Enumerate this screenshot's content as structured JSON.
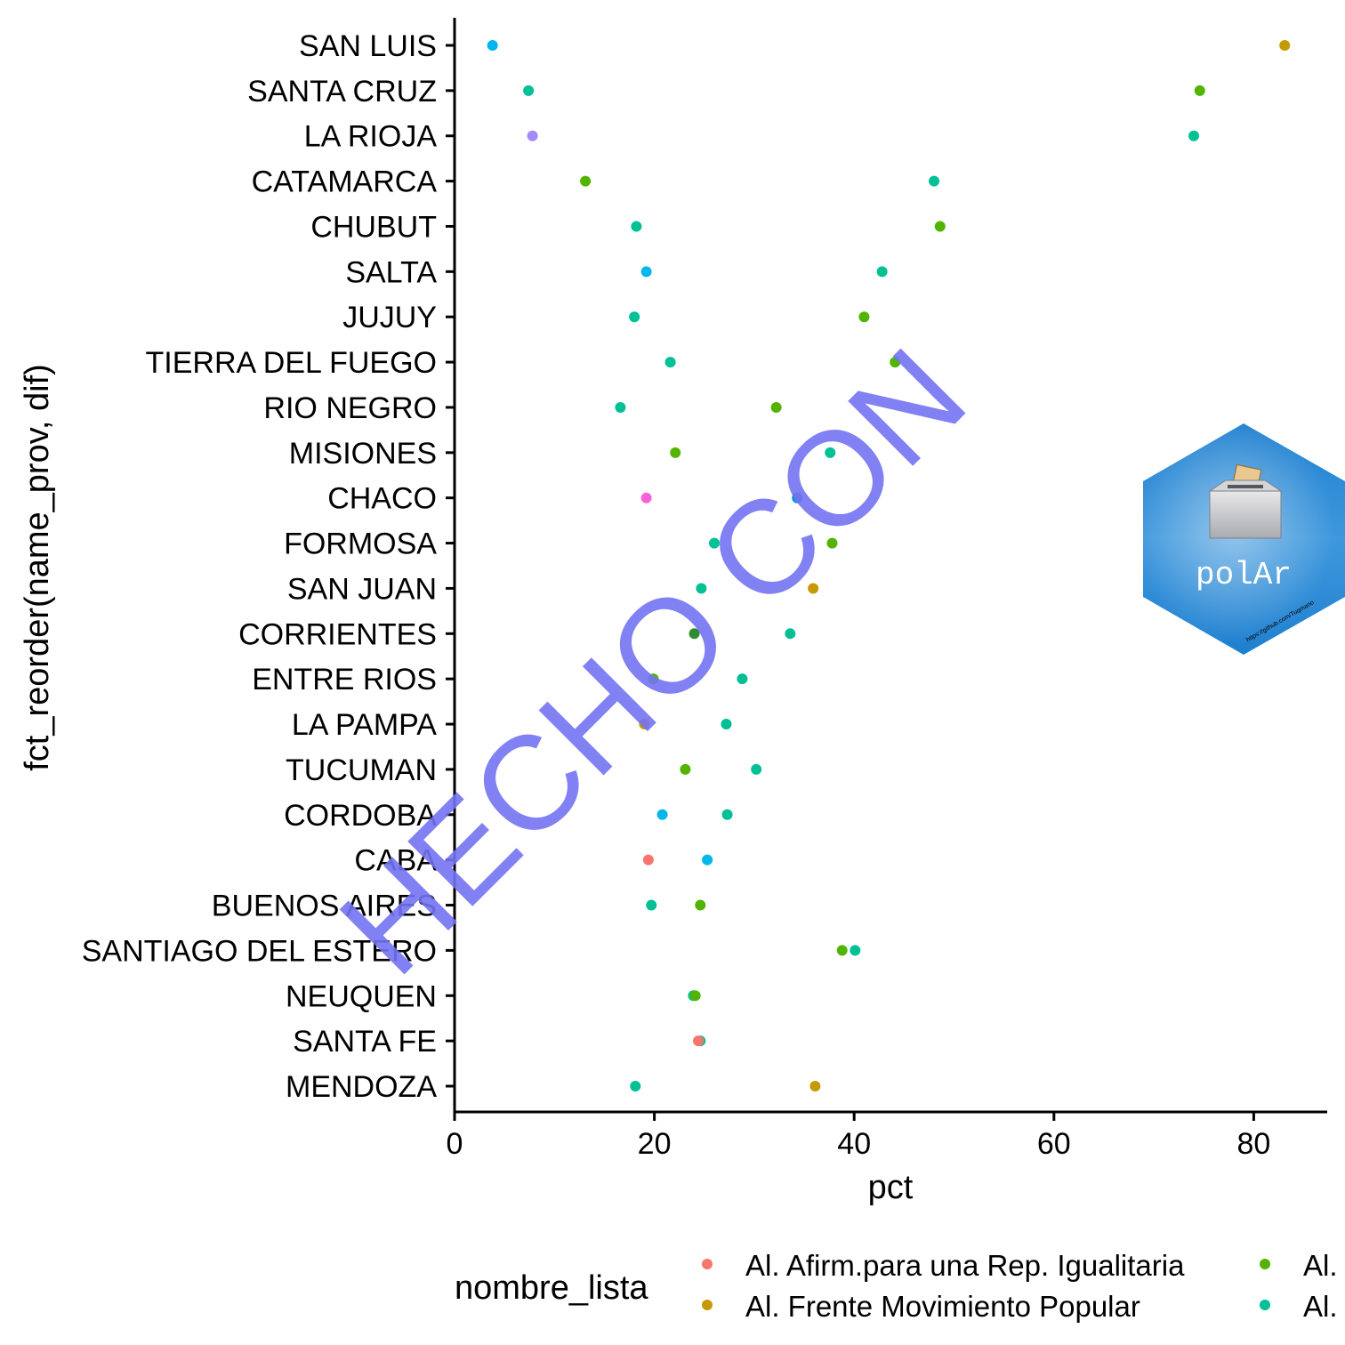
{
  "colors": {
    "Al. Afirm.para una Rep. Igualitaria": "#F8766D",
    "Al. Frente Movimiento Popular": "#C49A00",
    "green": "#53B400",
    "teal": "#00C094",
    "skyblue": "#00B6EB",
    "blue": "#0894D7",
    "purple": "#A58AFF",
    "magenta": "#FB61D7",
    "darkgreen": "#2E8B2E",
    "darkblue": "#1F77B4"
  },
  "chart_data": {
    "type": "scatter",
    "xlabel": "pct",
    "ylabel": "fct_reorder(name_prov, dif)",
    "xlim": [
      0,
      87
    ],
    "xticks": [
      0,
      20,
      40,
      60,
      80
    ],
    "categories": [
      "SAN LUIS",
      "SANTA CRUZ",
      "LA RIOJA",
      "CATAMARCA",
      "CHUBUT",
      "SALTA",
      "JUJUY",
      "TIERRA DEL FUEGO",
      "RIO NEGRO",
      "MISIONES",
      "CHACO",
      "FORMOSA",
      "SAN JUAN",
      "CORRIENTES",
      "ENTRE RIOS",
      "LA PAMPA",
      "TUCUMAN",
      "CORDOBA",
      "CABA",
      "BUENOS AIRES",
      "SANTIAGO DEL ESTERO",
      "NEUQUEN",
      "SANTA FE",
      "MENDOZA"
    ],
    "points": [
      {
        "province": "SAN LUIS",
        "pct": 3.8,
        "color_key": "skyblue"
      },
      {
        "province": "SAN LUIS",
        "pct": 83.1,
        "color_key": "Al. Frente Movimiento Popular"
      },
      {
        "province": "SANTA CRUZ",
        "pct": 7.4,
        "color_key": "teal"
      },
      {
        "province": "SANTA CRUZ",
        "pct": 74.6,
        "color_key": "green"
      },
      {
        "province": "LA RIOJA",
        "pct": 7.8,
        "color_key": "purple"
      },
      {
        "province": "LA RIOJA",
        "pct": 74.0,
        "color_key": "teal"
      },
      {
        "province": "CATAMARCA",
        "pct": 13.1,
        "color_key": "green"
      },
      {
        "province": "CATAMARCA",
        "pct": 48.0,
        "color_key": "teal"
      },
      {
        "province": "CHUBUT",
        "pct": 18.2,
        "color_key": "teal"
      },
      {
        "province": "CHUBUT",
        "pct": 48.6,
        "color_key": "green"
      },
      {
        "province": "SALTA",
        "pct": 19.2,
        "color_key": "skyblue"
      },
      {
        "province": "SALTA",
        "pct": 42.8,
        "color_key": "teal"
      },
      {
        "province": "JUJUY",
        "pct": 18.0,
        "color_key": "teal"
      },
      {
        "province": "JUJUY",
        "pct": 41.0,
        "color_key": "green"
      },
      {
        "province": "TIERRA DEL FUEGO",
        "pct": 21.6,
        "color_key": "teal"
      },
      {
        "province": "TIERRA DEL FUEGO",
        "pct": 44.1,
        "color_key": "green"
      },
      {
        "province": "RIO NEGRO",
        "pct": 16.6,
        "color_key": "teal"
      },
      {
        "province": "RIO NEGRO",
        "pct": 32.2,
        "color_key": "green"
      },
      {
        "province": "MISIONES",
        "pct": 22.1,
        "color_key": "green"
      },
      {
        "province": "MISIONES",
        "pct": 37.6,
        "color_key": "teal"
      },
      {
        "province": "CHACO",
        "pct": 19.2,
        "color_key": "magenta"
      },
      {
        "province": "CHACO",
        "pct": 34.3,
        "color_key": "blue"
      },
      {
        "province": "FORMOSA",
        "pct": 26.0,
        "color_key": "teal"
      },
      {
        "province": "FORMOSA",
        "pct": 37.8,
        "color_key": "green"
      },
      {
        "province": "SAN JUAN",
        "pct": 24.7,
        "color_key": "teal"
      },
      {
        "province": "SAN JUAN",
        "pct": 35.9,
        "color_key": "Al. Frente Movimiento Popular"
      },
      {
        "province": "CORRIENTES",
        "pct": 24.0,
        "color_key": "darkgreen"
      },
      {
        "province": "CORRIENTES",
        "pct": 33.6,
        "color_key": "teal"
      },
      {
        "province": "ENTRE RIOS",
        "pct": 19.9,
        "color_key": "green"
      },
      {
        "province": "ENTRE RIOS",
        "pct": 28.8,
        "color_key": "teal"
      },
      {
        "province": "LA PAMPA",
        "pct": 19.0,
        "color_key": "Al. Frente Movimiento Popular"
      },
      {
        "province": "LA PAMPA",
        "pct": 27.2,
        "color_key": "teal"
      },
      {
        "province": "TUCUMAN",
        "pct": 23.1,
        "color_key": "green"
      },
      {
        "province": "TUCUMAN",
        "pct": 30.2,
        "color_key": "teal"
      },
      {
        "province": "CORDOBA",
        "pct": 20.8,
        "color_key": "skyblue"
      },
      {
        "province": "CORDOBA",
        "pct": 27.3,
        "color_key": "teal"
      },
      {
        "province": "CABA",
        "pct": 19.4,
        "color_key": "Al. Afirm.para una Rep. Igualitaria"
      },
      {
        "province": "CABA",
        "pct": 25.3,
        "color_key": "skyblue"
      },
      {
        "province": "BUENOS AIRES",
        "pct": 19.7,
        "color_key": "teal"
      },
      {
        "province": "BUENOS AIRES",
        "pct": 24.6,
        "color_key": "green"
      },
      {
        "province": "SANTIAGO DEL ESTERO",
        "pct": 38.8,
        "color_key": "green"
      },
      {
        "province": "SANTIAGO DEL ESTERO",
        "pct": 40.1,
        "color_key": "teal"
      },
      {
        "province": "NEUQUEN",
        "pct": 23.9,
        "color_key": "teal"
      },
      {
        "province": "NEUQUEN",
        "pct": 24.1,
        "color_key": "green"
      },
      {
        "province": "SANTA FE",
        "pct": 24.6,
        "color_key": "teal"
      },
      {
        "province": "SANTA FE",
        "pct": 24.4,
        "color_key": "Al. Afirm.para una Rep. Igualitaria"
      },
      {
        "province": "MENDOZA",
        "pct": 18.1,
        "color_key": "teal"
      },
      {
        "province": "MENDOZA",
        "pct": 36.1,
        "color_key": "Al. Frente Movimiento Popular"
      }
    ],
    "legend": {
      "title": "nombre_lista",
      "position": "bottom",
      "entries": [
        {
          "label": "Al. Afirm.para una Rep. Igualitaria",
          "color_key": "Al. Afirm.para una Rep. Igualitaria"
        },
        {
          "label": "Al. Frente Movimiento Popular",
          "color_key": "Al. Frente Movimiento Popular"
        },
        {
          "label": "Al.",
          "color_key": "green"
        },
        {
          "label": "Al.",
          "color_key": "teal"
        }
      ]
    },
    "grid": false
  },
  "watermark": {
    "text": "HECHO CON"
  },
  "logo": {
    "text": "polAr",
    "url": "https://github.com/Tuqmano"
  }
}
